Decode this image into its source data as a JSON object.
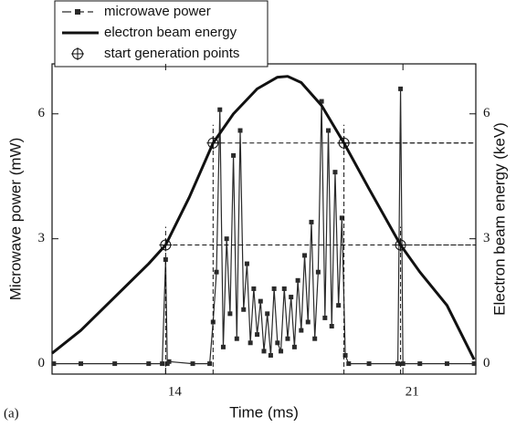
{
  "chart_data": {
    "type": "line",
    "label": "(a)",
    "xlabel": "Time (ms)",
    "ylabel": "Microwave power (mW)",
    "y2label": "Electron beam energy (keV)",
    "xlim": [
      10.65,
      23.15
    ],
    "xticks": [
      14,
      21
    ],
    "ylim": [
      -0.25,
      7.2
    ],
    "yticks": [
      0,
      3,
      6
    ],
    "y2lim": [
      -0.25,
      7.2
    ],
    "y2ticks": [
      0,
      3,
      6
    ],
    "legend": "top-left",
    "series": [
      {
        "name": "microwave power",
        "color": "#2a2a2a",
        "marker": "square",
        "x": [
          10.7,
          11.5,
          12.5,
          13.5,
          13.9,
          14.0,
          14.05,
          14.1,
          14.8,
          15.3,
          15.4,
          15.5,
          15.6,
          15.7,
          15.8,
          15.9,
          16.0,
          16.1,
          16.2,
          16.3,
          16.4,
          16.5,
          16.6,
          16.7,
          16.8,
          16.9,
          17.0,
          17.1,
          17.2,
          17.3,
          17.4,
          17.5,
          17.6,
          17.7,
          17.8,
          17.9,
          18.0,
          18.1,
          18.2,
          18.3,
          18.4,
          18.5,
          18.6,
          18.7,
          18.8,
          18.9,
          19.0,
          19.1,
          19.2,
          19.3,
          19.4,
          20.0,
          20.85,
          20.93,
          21.0,
          21.5,
          22.3,
          23.1
        ],
        "values": [
          0,
          0,
          0,
          0,
          0,
          2.5,
          0,
          0.05,
          0,
          0,
          1.0,
          2.2,
          6.1,
          0.4,
          3.0,
          1.2,
          5.0,
          0.6,
          5.6,
          1.3,
          2.4,
          0.5,
          1.8,
          0.7,
          1.5,
          0.3,
          1.2,
          0.2,
          1.8,
          0.5,
          0.3,
          1.8,
          0.6,
          1.6,
          0.4,
          2.0,
          0.8,
          2.6,
          1.0,
          3.4,
          0.6,
          2.2,
          6.3,
          1.1,
          5.6,
          0.9,
          4.6,
          1.4,
          3.5,
          0.2,
          0,
          0,
          0,
          6.6,
          0,
          0,
          0,
          0
        ]
      },
      {
        "name": "electron beam energy",
        "color": "#111111",
        "axis": "y2",
        "x": [
          10.65,
          11.5,
          12.5,
          13.5,
          14.0,
          14.7,
          15.4,
          16.0,
          16.7,
          17.3,
          17.6,
          18.0,
          18.6,
          19.26,
          20.0,
          20.93,
          21.5,
          22.3,
          23.1
        ],
        "values": [
          0.25,
          0.8,
          1.6,
          2.4,
          2.85,
          4.0,
          5.3,
          6.0,
          6.6,
          6.88,
          6.9,
          6.75,
          6.2,
          5.3,
          4.2,
          2.85,
          2.2,
          1.4,
          0.1
        ]
      },
      {
        "name": "start generation points",
        "color": "#111111",
        "axis": "y2",
        "marker": "crosshair",
        "x": [
          14.0,
          15.4,
          19.26,
          20.93
        ],
        "values": [
          2.85,
          5.3,
          5.3,
          2.85
        ]
      }
    ]
  }
}
